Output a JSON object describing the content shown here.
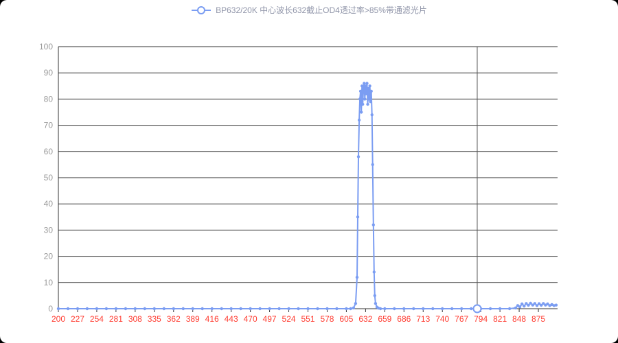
{
  "legend": {
    "label": "BP632/20K 中心波长632截止OD4透过率>85%带通滤光片"
  },
  "colors": {
    "page_background": "#000000",
    "card_background": "#ffffff",
    "line": "#7b9df2",
    "marker_fill": "#7b9df2",
    "hover_marker_fill": "#ffffff",
    "grid": "#333333",
    "axis": "#333333",
    "x_tick_label": "#ff3b30",
    "y_tick_label": "#999999",
    "legend_text": "#9095a9",
    "hover_line": "#555555"
  },
  "chart_data": {
    "type": "line",
    "title": "BP632/20K 中心波长632截止OD4透过率>85%带通滤光片",
    "xlabel": "",
    "ylabel": "",
    "xlim": [
      200,
      902
    ],
    "ylim": [
      0,
      100
    ],
    "x_ticks": [
      200,
      227,
      254,
      281,
      308,
      335,
      362,
      389,
      416,
      443,
      470,
      497,
      524,
      551,
      578,
      605,
      632,
      659,
      686,
      713,
      740,
      767,
      794,
      821,
      848,
      875
    ],
    "y_ticks": [
      0,
      10,
      20,
      30,
      40,
      50,
      60,
      70,
      80,
      90,
      100
    ],
    "grid": true,
    "legend_position": "top-center",
    "hover_point": {
      "x": 789,
      "y": 0
    },
    "series": [
      {
        "name": "BP632/20K 中心波长632截止OD4透过率>85%带通滤光片",
        "points": [
          [
            200,
            0
          ],
          [
            213.5,
            0
          ],
          [
            227,
            0
          ],
          [
            240.5,
            0
          ],
          [
            254,
            0
          ],
          [
            267.5,
            0
          ],
          [
            281,
            0
          ],
          [
            294.5,
            0
          ],
          [
            308,
            0
          ],
          [
            321.5,
            0
          ],
          [
            335,
            0
          ],
          [
            348.5,
            0
          ],
          [
            362,
            0
          ],
          [
            375.5,
            0
          ],
          [
            389,
            0
          ],
          [
            402.5,
            0
          ],
          [
            416,
            0
          ],
          [
            429.5,
            0
          ],
          [
            443,
            0
          ],
          [
            456.5,
            0
          ],
          [
            470,
            0
          ],
          [
            483.5,
            0
          ],
          [
            497,
            0
          ],
          [
            510.5,
            0
          ],
          [
            524,
            0
          ],
          [
            537.5,
            0
          ],
          [
            551,
            0
          ],
          [
            564.5,
            0
          ],
          [
            578,
            0
          ],
          [
            591.5,
            0
          ],
          [
            605,
            0
          ],
          [
            611,
            0
          ],
          [
            615,
            0.3
          ],
          [
            618,
            2
          ],
          [
            620,
            12
          ],
          [
            621,
            35
          ],
          [
            622,
            58
          ],
          [
            623,
            72
          ],
          [
            624,
            80
          ],
          [
            625,
            83
          ],
          [
            626,
            75
          ],
          [
            627,
            85
          ],
          [
            628,
            78
          ],
          [
            629,
            84
          ],
          [
            630,
            86
          ],
          [
            631,
            80
          ],
          [
            632,
            85
          ],
          [
            633,
            82
          ],
          [
            634,
            86
          ],
          [
            635,
            78
          ],
          [
            636,
            84
          ],
          [
            637,
            80
          ],
          [
            638,
            85
          ],
          [
            639,
            79
          ],
          [
            640,
            83
          ],
          [
            641,
            74
          ],
          [
            642,
            55
          ],
          [
            643,
            32
          ],
          [
            644,
            14
          ],
          [
            645,
            5
          ],
          [
            646,
            2
          ],
          [
            648,
            0.6
          ],
          [
            650,
            0.2
          ],
          [
            653,
            0
          ],
          [
            659,
            0
          ],
          [
            672.5,
            0
          ],
          [
            686,
            0
          ],
          [
            699.5,
            0
          ],
          [
            713,
            0
          ],
          [
            726.5,
            0
          ],
          [
            740,
            0
          ],
          [
            753.5,
            0
          ],
          [
            767,
            0
          ],
          [
            780.5,
            0
          ],
          [
            789,
            0
          ],
          [
            794,
            0
          ],
          [
            807.5,
            0
          ],
          [
            821,
            0
          ],
          [
            834.5,
            0
          ],
          [
            843,
            0.3
          ],
          [
            846,
            1.2
          ],
          [
            849,
            0.7
          ],
          [
            852,
            1.8
          ],
          [
            855,
            1
          ],
          [
            858,
            2
          ],
          [
            861,
            1.3
          ],
          [
            864,
            2.1
          ],
          [
            867,
            1.4
          ],
          [
            870,
            2
          ],
          [
            873,
            1.2
          ],
          [
            876,
            1.9
          ],
          [
            879,
            1.3
          ],
          [
            882,
            2
          ],
          [
            885,
            1.4
          ],
          [
            888,
            1.8
          ],
          [
            891,
            1.2
          ],
          [
            894,
            1.6
          ],
          [
            897,
            1.2
          ],
          [
            900,
            1.4
          ]
        ]
      }
    ]
  }
}
